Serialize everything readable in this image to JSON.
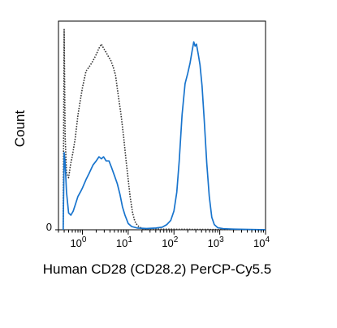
{
  "chart_data": {
    "type": "line",
    "title": "",
    "xlabel": "Human CD28 (CD28.2) PerCP-Cy5.5",
    "ylabel": "Count",
    "x_scale": "log",
    "xlim": [
      0.3,
      10000
    ],
    "ylim": [
      0,
      100
    ],
    "x_ticks": [
      {
        "base": "10",
        "exp": "0",
        "value": 1
      },
      {
        "base": "10",
        "exp": "1",
        "value": 10
      },
      {
        "base": "10",
        "exp": "2",
        "value": 100
      },
      {
        "base": "10",
        "exp": "3",
        "value": 1000
      },
      {
        "base": "10",
        "exp": "4",
        "value": 10000
      }
    ],
    "y_ticks": [
      {
        "label": "0",
        "value": 0
      }
    ],
    "grid": false,
    "series": [
      {
        "style": "dotted",
        "color": "#333333",
        "points": [
          [
            0.38,
            0
          ],
          [
            0.4,
            96
          ],
          [
            0.42,
            45
          ],
          [
            0.45,
            27
          ],
          [
            0.5,
            25
          ],
          [
            0.55,
            31
          ],
          [
            0.62,
            37
          ],
          [
            0.7,
            44
          ],
          [
            0.8,
            55
          ],
          [
            0.9,
            62
          ],
          [
            1.0,
            68
          ],
          [
            1.2,
            76
          ],
          [
            1.4,
            78
          ],
          [
            1.6,
            80
          ],
          [
            1.8,
            82
          ],
          [
            2.0,
            84
          ],
          [
            2.3,
            87
          ],
          [
            2.6,
            89
          ],
          [
            2.9,
            87
          ],
          [
            3.3,
            85
          ],
          [
            3.7,
            83
          ],
          [
            4.2,
            81
          ],
          [
            4.7,
            78
          ],
          [
            5.3,
            74
          ],
          [
            6.0,
            65
          ],
          [
            7.0,
            55
          ],
          [
            8.0,
            44
          ],
          [
            9.0,
            33
          ],
          [
            10.0,
            24
          ],
          [
            11.0,
            16
          ],
          [
            12.5,
            8
          ],
          [
            14.0,
            4
          ],
          [
            16.0,
            2
          ],
          [
            20.0,
            0.6
          ],
          [
            30.0,
            0.3
          ],
          [
            10000,
            0
          ]
        ]
      },
      {
        "style": "solid",
        "color": "#1874cd",
        "points": [
          [
            0.38,
            0
          ],
          [
            0.4,
            37
          ],
          [
            0.42,
            32
          ],
          [
            0.45,
            18
          ],
          [
            0.5,
            8
          ],
          [
            0.56,
            7
          ],
          [
            0.63,
            9
          ],
          [
            0.7,
            12
          ],
          [
            0.8,
            16
          ],
          [
            0.9,
            18
          ],
          [
            1.0,
            20
          ],
          [
            1.2,
            24
          ],
          [
            1.4,
            27
          ],
          [
            1.7,
            31
          ],
          [
            2.0,
            33
          ],
          [
            2.3,
            35
          ],
          [
            2.6,
            34
          ],
          [
            2.9,
            35
          ],
          [
            3.3,
            33
          ],
          [
            3.8,
            33
          ],
          [
            4.3,
            30
          ],
          [
            5.0,
            26
          ],
          [
            5.8,
            22
          ],
          [
            6.6,
            17
          ],
          [
            7.5,
            11
          ],
          [
            8.5,
            7
          ],
          [
            10.0,
            3
          ],
          [
            12.0,
            1.5
          ],
          [
            16.0,
            0.8
          ],
          [
            25.0,
            0.6
          ],
          [
            40.0,
            0.8
          ],
          [
            55.0,
            1.2
          ],
          [
            70.0,
            2.5
          ],
          [
            85.0,
            4.5
          ],
          [
            100,
            9
          ],
          [
            115,
            18
          ],
          [
            130,
            33
          ],
          [
            150,
            55
          ],
          [
            175,
            70
          ],
          [
            200,
            75
          ],
          [
            225,
            80
          ],
          [
            250,
            86
          ],
          [
            270,
            90
          ],
          [
            290,
            88
          ],
          [
            310,
            89
          ],
          [
            340,
            84
          ],
          [
            370,
            79
          ],
          [
            410,
            69
          ],
          [
            460,
            52
          ],
          [
            520,
            32
          ],
          [
            590,
            16
          ],
          [
            670,
            6
          ],
          [
            760,
            2.5
          ],
          [
            900,
            1
          ],
          [
            1200,
            0.5
          ],
          [
            2000,
            0.3
          ],
          [
            10000,
            0
          ]
        ]
      }
    ]
  }
}
